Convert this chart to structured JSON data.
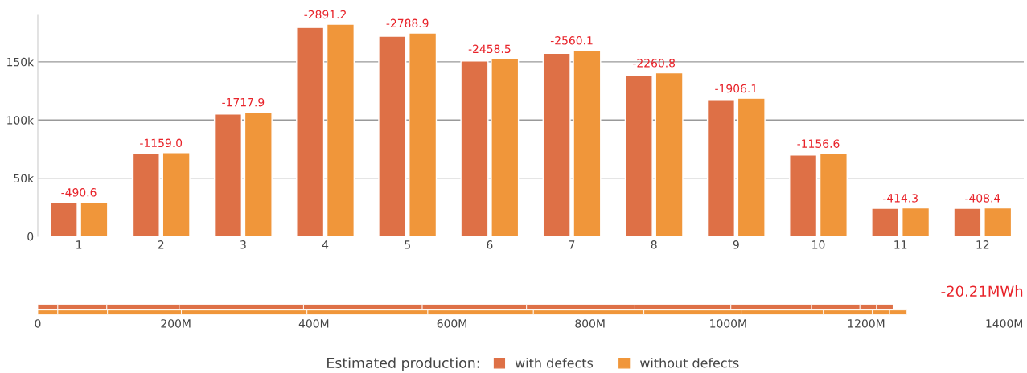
{
  "chart_data": [
    {
      "type": "bar",
      "categories": [
        "1",
        "2",
        "3",
        "4",
        "5",
        "6",
        "7",
        "8",
        "9",
        "10",
        "11",
        "12"
      ],
      "series": [
        {
          "name": "with defects",
          "color": "#de7046",
          "values": [
            29000,
            70900,
            105200,
            179500,
            172000,
            150800,
            157300,
            138600,
            116900,
            69900,
            24100,
            24100
          ]
        },
        {
          "name": "without defects",
          "color": "#f0963a",
          "values": [
            29400,
            71900,
            106900,
            182300,
            174800,
            152700,
            160000,
            140600,
            118700,
            71300,
            24500,
            24500
          ]
        }
      ],
      "annotations": [
        {
          "text": "-490.6",
          "x": "1",
          "y": 29400
        },
        {
          "text": "-1159.0",
          "x": "2",
          "y": 71900
        },
        {
          "text": "-1717.9",
          "x": "3",
          "y": 106900
        },
        {
          "text": "-2891.2",
          "x": "4",
          "y": 182300
        },
        {
          "text": "-2788.9",
          "x": "5",
          "y": 174800
        },
        {
          "text": "-2458.5",
          "x": "6",
          "y": 152700
        },
        {
          "text": "-2560.1",
          "x": "7",
          "y": 160000
        },
        {
          "text": "-2260.8",
          "x": "8",
          "y": 140600
        },
        {
          "text": "-1906.1",
          "x": "9",
          "y": 118700
        },
        {
          "text": "-1156.6",
          "x": "10",
          "y": 71300
        },
        {
          "text": "-414.3",
          "x": "11",
          "y": 24500
        },
        {
          "text": "-408.4",
          "x": "12",
          "y": 24500
        }
      ],
      "ylim": [
        0,
        190000
      ],
      "yticks": [
        0,
        {
          "value": 50000,
          "label": "50k"
        },
        {
          "value": 100000,
          "label": "100k"
        },
        {
          "value": 150000,
          "label": "150k"
        }
      ],
      "grid": "y",
      "legend": "bottom",
      "legend_title": "Estimated production:"
    },
    {
      "type": "bar",
      "orientation": "horizontal",
      "stacked": true,
      "categories": [
        null,
        null
      ],
      "series": [
        {
          "colors": [
            "#de7046",
            "#f0963a"
          ],
          "values": [
            29000000,
            29000000
          ]
        },
        {
          "colors": [
            "#de7046",
            "#f0963a"
          ],
          "values": [
            71000000,
            72000000
          ]
        },
        {
          "colors": [
            "#de7046",
            "#f0963a"
          ],
          "values": [
            105000000,
            107000000
          ]
        },
        {
          "colors": [
            "#de7046",
            "#f0963a"
          ],
          "values": [
            180000000,
            182000000
          ]
        },
        {
          "colors": [
            "#de7046",
            "#f0963a"
          ],
          "values": [
            172000000,
            175000000
          ]
        },
        {
          "colors": [
            "#de7046",
            "#f0963a"
          ],
          "values": [
            151000000,
            153000000
          ]
        },
        {
          "colors": [
            "#de7046",
            "#f0963a"
          ],
          "values": [
            157000000,
            160000000
          ]
        },
        {
          "colors": [
            "#de7046",
            "#f0963a"
          ],
          "values": [
            139000000,
            141000000
          ]
        },
        {
          "colors": [
            "#de7046",
            "#f0963a"
          ],
          "values": [
            117000000,
            119000000
          ]
        },
        {
          "colors": [
            "#de7046",
            "#f0963a"
          ],
          "values": [
            70000000,
            71000000
          ]
        },
        {
          "colors": [
            "#de7046",
            "#f0963a"
          ],
          "values": [
            24000000,
            25000000
          ]
        },
        {
          "colors": [
            "#de7046",
            "#f0963a"
          ],
          "values": [
            24000000,
            25000000
          ]
        }
      ],
      "xlim": [
        0,
        1400000000
      ],
      "xticks": [
        0,
        {
          "value": 200000000,
          "label": "200M"
        },
        {
          "value": 400000000,
          "label": "400M"
        },
        {
          "value": 600000000,
          "label": "600M"
        },
        {
          "value": 800000000,
          "label": "800M"
        },
        {
          "value": 1000000000,
          "label": "1000M"
        },
        {
          "value": 1200000000,
          "label": "1200M"
        },
        {
          "value": 1400000000,
          "label": "1400M"
        }
      ],
      "tick_labels": "x",
      "annotations": [
        "-20.21MWh"
      ]
    }
  ]
}
